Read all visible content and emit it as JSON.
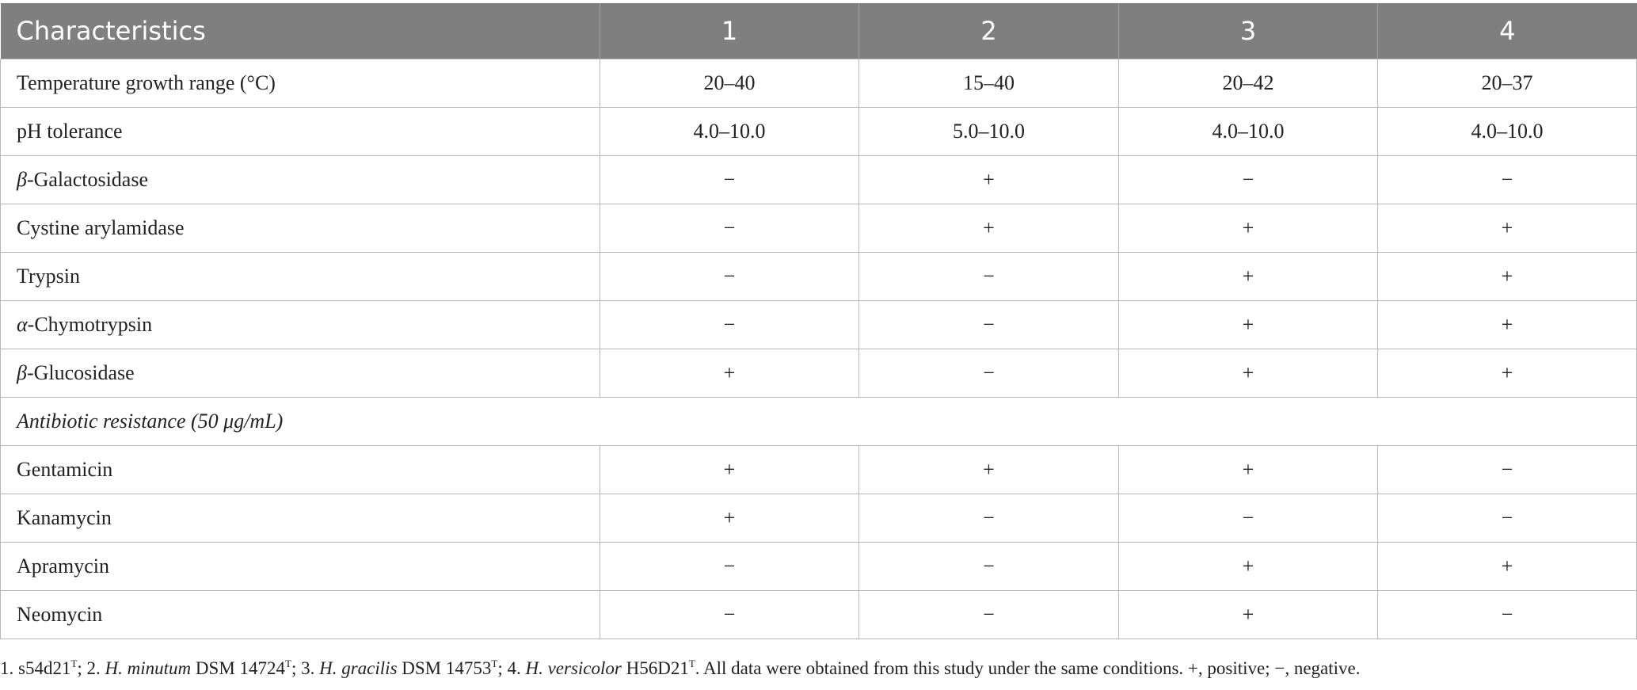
{
  "table": {
    "header": [
      "Characteristics",
      "1",
      "2",
      "3",
      "4"
    ],
    "rows": [
      {
        "label": [
          {
            "text": "Temperature growth range (°C)",
            "style": "normal"
          }
        ],
        "values": [
          "20–40",
          "15–40",
          "20–42",
          "20–37"
        ]
      },
      {
        "label": [
          {
            "text": "pH tolerance",
            "style": "normal"
          }
        ],
        "values": [
          "4.0–10.0",
          "5.0–10.0",
          "4.0–10.0",
          "4.0–10.0"
        ]
      },
      {
        "label": [
          {
            "text": "β",
            "style": "italic"
          },
          {
            "text": "-Galactosidase",
            "style": "normal"
          }
        ],
        "values": [
          "−",
          "+",
          "−",
          "−"
        ]
      },
      {
        "label": [
          {
            "text": "Cystine arylamidase",
            "style": "normal"
          }
        ],
        "values": [
          "−",
          "+",
          "+",
          "+"
        ]
      },
      {
        "label": [
          {
            "text": "Trypsin",
            "style": "normal"
          }
        ],
        "values": [
          "−",
          "−",
          "+",
          "+"
        ]
      },
      {
        "label": [
          {
            "text": "α",
            "style": "italic"
          },
          {
            "text": "-Chymotrypsin",
            "style": "normal"
          }
        ],
        "values": [
          "−",
          "−",
          "+",
          "+"
        ]
      },
      {
        "label": [
          {
            "text": "β",
            "style": "italic"
          },
          {
            "text": "-Glucosidase",
            "style": "normal"
          }
        ],
        "values": [
          "+",
          "−",
          "+",
          "+"
        ]
      },
      {
        "section": "Antibiotic resistance (50 μg/mL)"
      },
      {
        "label": [
          {
            "text": "Gentamicin",
            "style": "normal"
          }
        ],
        "values": [
          "+",
          "+",
          "+",
          "−"
        ]
      },
      {
        "label": [
          {
            "text": "Kanamycin",
            "style": "normal"
          }
        ],
        "values": [
          "+",
          "−",
          "−",
          "−"
        ]
      },
      {
        "label": [
          {
            "text": "Apramycin",
            "style": "normal"
          }
        ],
        "values": [
          "−",
          "−",
          "+",
          "+"
        ]
      },
      {
        "label": [
          {
            "text": "Neomycin",
            "style": "normal"
          }
        ],
        "values": [
          "−",
          "−",
          "+",
          "−"
        ]
      }
    ]
  },
  "footnote": [
    {
      "text": "1. s54d21",
      "style": "normal"
    },
    {
      "text": "T",
      "style": "sup"
    },
    {
      "text": "; 2. ",
      "style": "normal"
    },
    {
      "text": "H. minutum",
      "style": "italic"
    },
    {
      "text": " DSM 14724",
      "style": "normal"
    },
    {
      "text": "T",
      "style": "sup"
    },
    {
      "text": "; 3. ",
      "style": "normal"
    },
    {
      "text": "H. gracilis",
      "style": "italic"
    },
    {
      "text": " DSM 14753",
      "style": "normal"
    },
    {
      "text": "T",
      "style": "sup"
    },
    {
      "text": "; 4. ",
      "style": "normal"
    },
    {
      "text": "H. versicolor",
      "style": "italic"
    },
    {
      "text": " H56D21",
      "style": "normal"
    },
    {
      "text": "T",
      "style": "sup"
    },
    {
      "text": ". All data were obtained from this study under the same conditions. +, positive; −, negative.",
      "style": "normal"
    }
  ]
}
